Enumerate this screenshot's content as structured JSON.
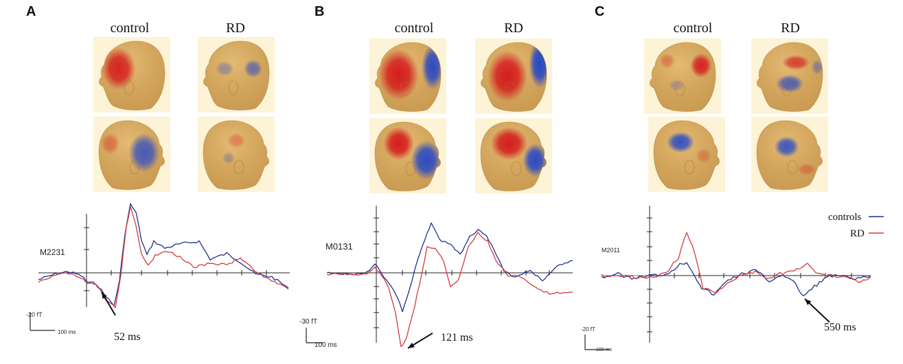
{
  "panels": [
    {
      "letter": "A",
      "group_labels": [
        "control",
        "RD"
      ],
      "channel": "M2231",
      "scale_amplitude": "-20 fT",
      "scale_time": "100 ms",
      "annotation": "52 ms"
    },
    {
      "letter": "B",
      "group_labels": [
        "control",
        "RD"
      ],
      "channel": "M0131",
      "scale_amplitude": "-30 fT",
      "scale_time": "100 ms",
      "annotation": "121 ms"
    },
    {
      "letter": "C",
      "group_labels": [
        "control",
        "RD"
      ],
      "channel": "M2011",
      "scale_amplitude": "-20 fT",
      "scale_time": "100 ms",
      "annotation": "550 ms"
    }
  ],
  "legend": [
    {
      "name": "controls",
      "color": "#1f2f8f"
    },
    {
      "name": "RD",
      "color": "#d23a3a"
    }
  ],
  "colors": {
    "controls_trace": "#1f2f8f",
    "rd_trace": "#d23a3a",
    "positive_field": "#d41e1e",
    "negative_field": "#2447c8",
    "head_skin": "#d9a85a"
  }
}
